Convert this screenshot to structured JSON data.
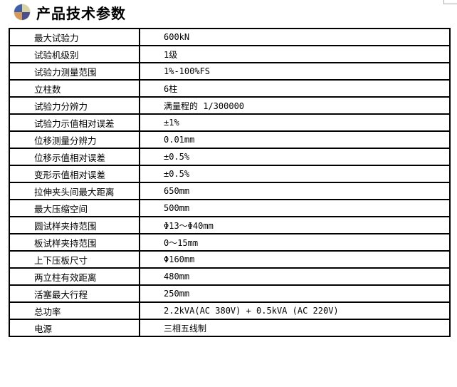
{
  "header": {
    "title": "产品技术参数",
    "icon": "quadrant-ball-icon"
  },
  "rows": [
    {
      "label": "最大试验力",
      "value": "600kN"
    },
    {
      "label": "试验机级别",
      "value": "1级"
    },
    {
      "label": "试验力测量范围",
      "value": "1%-100%FS"
    },
    {
      "label": "立柱数",
      "value": "6柱"
    },
    {
      "label": "试验力分辨力",
      "value": "满量程的 1/300000"
    },
    {
      "label": "试验力示值相对误差",
      "value": "±1%"
    },
    {
      "label": "位移测量分辨力",
      "value": "0.01mm"
    },
    {
      "label": "位移示值相对误差",
      "value": "±0.5%"
    },
    {
      "label": "变形示值相对误差",
      "value": "±0.5%"
    },
    {
      "label": "拉伸夹头间最大距离",
      "value": "650mm"
    },
    {
      "label": "最大压缩空间",
      "value": "500mm"
    },
    {
      "label": "圆试样夹持范围",
      "value": "Φ13～Φ40mm"
    },
    {
      "label": "板试样夹持范围",
      "value": "0～15mm"
    },
    {
      "label": "上下压板尺寸",
      "value": "Φ160mm"
    },
    {
      "label": "两立柱有效距离",
      "value": "480mm"
    },
    {
      "label": "活塞最大行程",
      "value": "250mm"
    },
    {
      "label": "总功率",
      "value": "2.2kVA(AC 380V) + 0.5kVA (AC 220V)"
    },
    {
      "label": "电源",
      "value": "三相五线制"
    }
  ]
}
